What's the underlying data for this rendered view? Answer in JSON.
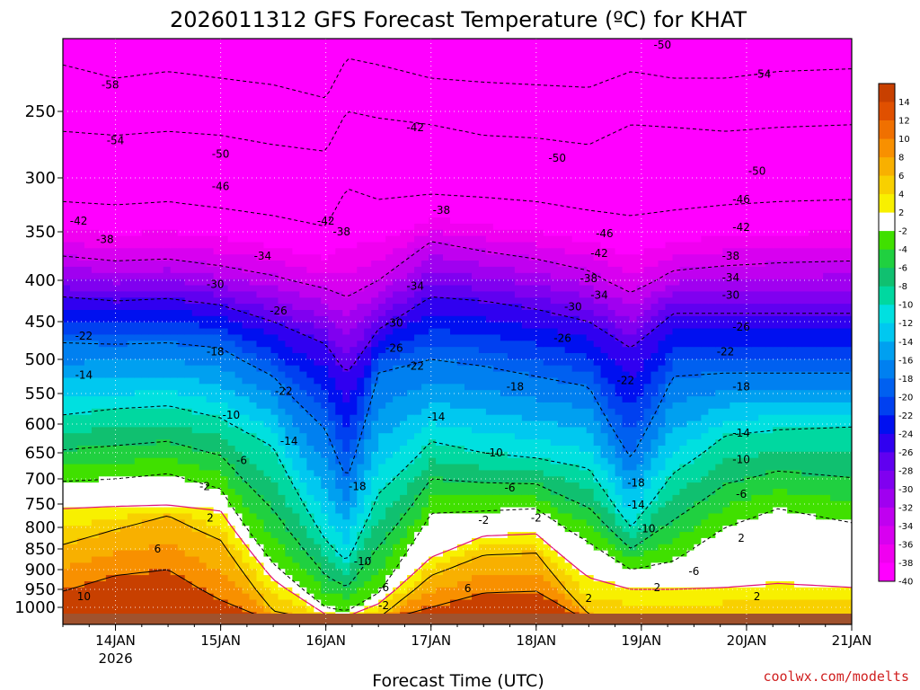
{
  "chart_data": {
    "type": "heatmap",
    "title": "2026011312 GFS Forecast Temperature (ºC) for KHAT",
    "xlabel": "Forecast Time (UTC)",
    "credit": "coolwx.com/modelts",
    "xticks": [
      "14JAN",
      "15JAN",
      "16JAN",
      "17JAN",
      "18JAN",
      "19JAN",
      "20JAN",
      "21JAN"
    ],
    "xtick_sublabel": "2026",
    "x_range_days": [
      13.5,
      21.0
    ],
    "y_axis": "pressure (hPa), inverted",
    "y_range": [
      200,
      1040
    ],
    "yticks": [
      250,
      300,
      350,
      400,
      450,
      500,
      550,
      600,
      650,
      700,
      750,
      800,
      850,
      900,
      950,
      1000
    ],
    "colorbar": {
      "levels": [
        14,
        12,
        10,
        8,
        6,
        4,
        2,
        -2,
        -4,
        -6,
        -8,
        -10,
        -12,
        -14,
        -16,
        -18,
        -20,
        -22,
        -24,
        -26,
        -28,
        -30,
        -32,
        -34,
        -36,
        -38,
        -40
      ],
      "colors": [
        "#c84000",
        "#e05000",
        "#f07000",
        "#f89000",
        "#f8b000",
        "#f8d000",
        "#f8f000",
        "#ffffff",
        "#40e000",
        "#20d040",
        "#10c070",
        "#00d8a0",
        "#00e0e0",
        "#00c8f0",
        "#00a0f0",
        "#0080f0",
        "#0060f0",
        "#0040f0",
        "#0010f0",
        "#3000f0",
        "#6000f0",
        "#8000f0",
        "#a000f0",
        "#c000f0",
        "#d800f0",
        "#f000f0",
        "#ff00ff"
      ]
    },
    "profiles": [
      {
        "day": 13.5,
        "isotherm_hpa": {
          "-58": 215,
          "-50": 265,
          "-42": 322,
          "-34": 375,
          "-26": 420,
          "-18": 478,
          "-10": 585,
          "-2": 705,
          "2": 760,
          "6": 840,
          "10": 955
        }
      },
      {
        "day": 14.0,
        "isotherm_hpa": {
          "-58": 225,
          "-50": 268,
          "-42": 325,
          "-34": 380,
          "-26": 425,
          "-18": 480,
          "-10": 575,
          "-2": 700,
          "2": 755,
          "6": 805,
          "10": 915
        }
      },
      {
        "day": 14.5,
        "isotherm_hpa": {
          "-58": 220,
          "-50": 265,
          "-42": 322,
          "-34": 378,
          "-26": 422,
          "-18": 478,
          "-10": 570,
          "-2": 690,
          "2": 752,
          "6": 775,
          "10": 900
        }
      },
      {
        "day": 15.0,
        "isotherm_hpa": {
          "-58": 225,
          "-50": 268,
          "-42": 328,
          "-34": 385,
          "-26": 430,
          "-18": 485,
          "-10": 590,
          "-2": 720,
          "2": 765,
          "6": 830,
          "10": 980
        }
      },
      {
        "day": 15.5,
        "isotherm_hpa": {
          "-58": 230,
          "-50": 275,
          "-42": 335,
          "-34": 395,
          "-26": 450,
          "-18": 525,
          "-10": 640,
          "-2": 885,
          "2": 925,
          "6": 1010,
          "10": 1040
        }
      },
      {
        "day": 16.0,
        "isotherm_hpa": {
          "-58": 240,
          "-50": 280,
          "-42": 345,
          "-34": 410,
          "-26": 480,
          "-18": 610,
          "-10": 830,
          "-2": 1000,
          "2": 1020,
          "6": 1040,
          "10": 1040
        }
      },
      {
        "day": 16.2,
        "isotherm_hpa": {
          "-58": 210,
          "-50": 250,
          "-42": 310,
          "-34": 420,
          "-26": 520,
          "-18": 700,
          "-10": 880,
          "-2": 1010,
          "2": 1025,
          "6": 1040,
          "10": 1040
        }
      },
      {
        "day": 16.5,
        "isotherm_hpa": {
          "-58": 215,
          "-50": 255,
          "-42": 320,
          "-34": 400,
          "-26": 460,
          "-18": 520,
          "-10": 730,
          "-2": 960,
          "2": 990,
          "6": 1030,
          "10": 1040
        }
      },
      {
        "day": 17.0,
        "isotherm_hpa": {
          "-58": 225,
          "-50": 260,
          "-42": 315,
          "-34": 360,
          "-26": 420,
          "-18": 500,
          "-10": 630,
          "-2": 770,
          "2": 870,
          "6": 915,
          "10": 1000
        }
      },
      {
        "day": 17.5,
        "isotherm_hpa": {
          "-58": 228,
          "-50": 268,
          "-42": 318,
          "-34": 370,
          "-26": 425,
          "-18": 510,
          "-10": 650,
          "-2": 765,
          "2": 820,
          "6": 865,
          "10": 960
        }
      },
      {
        "day": 18.0,
        "isotherm_hpa": {
          "-58": 230,
          "-50": 270,
          "-42": 322,
          "-34": 378,
          "-26": 435,
          "-18": 525,
          "-10": 660,
          "-2": 760,
          "2": 815,
          "6": 860,
          "10": 955
        }
      },
      {
        "day": 18.5,
        "isotherm_hpa": {
          "-58": 232,
          "-50": 275,
          "-42": 330,
          "-34": 390,
          "-26": 450,
          "-18": 540,
          "-10": 680,
          "-2": 835,
          "2": 920,
          "6": 1020,
          "10": 1040
        }
      },
      {
        "day": 18.9,
        "isotherm_hpa": {
          "-58": 220,
          "-50": 260,
          "-42": 335,
          "-34": 415,
          "-26": 485,
          "-18": 660,
          "-10": 800,
          "-2": 900,
          "2": 950,
          "6": 1030,
          "10": 1040
        }
      },
      {
        "day": 19.3,
        "isotherm_hpa": {
          "-58": 225,
          "-50": 262,
          "-42": 330,
          "-34": 390,
          "-26": 440,
          "-18": 525,
          "-10": 690,
          "-2": 880,
          "2": 950,
          "6": 1030,
          "10": 1040
        }
      },
      {
        "day": 19.8,
        "isotherm_hpa": {
          "-58": 225,
          "-50": 265,
          "-42": 325,
          "-34": 385,
          "-26": 440,
          "-18": 520,
          "-10": 620,
          "-2": 800,
          "2": 945,
          "6": 1030,
          "10": 1040
        }
      },
      {
        "day": 20.3,
        "isotherm_hpa": {
          "-58": 220,
          "-50": 262,
          "-42": 322,
          "-34": 382,
          "-26": 440,
          "-18": 520,
          "-10": 610,
          "-2": 760,
          "2": 935,
          "6": 1030,
          "10": 1040
        }
      },
      {
        "day": 21.0,
        "isotherm_hpa": {
          "-58": 218,
          "-50": 260,
          "-42": 320,
          "-34": 380,
          "-26": 440,
          "-18": 520,
          "-10": 605,
          "-2": 790,
          "2": 945,
          "6": 1030,
          "10": 1040
        }
      }
    ],
    "contour_labels": [
      {
        "text": "-58",
        "day": 13.95,
        "hpa": 230
      },
      {
        "text": "-54",
        "day": 14.0,
        "hpa": 272
      },
      {
        "text": "-50",
        "day": 15.0,
        "hpa": 282
      },
      {
        "text": "-46",
        "day": 15.0,
        "hpa": 308
      },
      {
        "text": "-42",
        "day": 13.65,
        "hpa": 340
      },
      {
        "text": "-38",
        "day": 13.9,
        "hpa": 358
      },
      {
        "text": "-34",
        "day": 15.4,
        "hpa": 375
      },
      {
        "text": "-30",
        "day": 14.95,
        "hpa": 405
      },
      {
        "text": "-26",
        "day": 15.55,
        "hpa": 437
      },
      {
        "text": "-22",
        "day": 13.7,
        "hpa": 469
      },
      {
        "text": "-18",
        "day": 14.95,
        "hpa": 490
      },
      {
        "text": "-14",
        "day": 13.7,
        "hpa": 523
      },
      {
        "text": "-10",
        "day": 15.1,
        "hpa": 585
      },
      {
        "text": "-6",
        "day": 13.45,
        "hpa": 662
      },
      {
        "text": "-6",
        "day": 15.2,
        "hpa": 665
      },
      {
        "text": "-2",
        "day": 14.85,
        "hpa": 715
      },
      {
        "text": "2",
        "day": 14.9,
        "hpa": 780
      },
      {
        "text": "6",
        "day": 14.4,
        "hpa": 850
      },
      {
        "text": "10",
        "day": 13.7,
        "hpa": 970
      },
      {
        "text": "-14",
        "day": 15.65,
        "hpa": 630
      },
      {
        "text": "-18",
        "day": 16.3,
        "hpa": 715
      },
      {
        "text": "-10",
        "day": 16.35,
        "hpa": 880
      },
      {
        "text": "-6",
        "day": 16.55,
        "hpa": 945
      },
      {
        "text": "-2",
        "day": 16.55,
        "hpa": 995
      },
      {
        "text": "-42",
        "day": 16.0,
        "hpa": 340
      },
      {
        "text": "-42",
        "day": 16.85,
        "hpa": 262
      },
      {
        "text": "-38",
        "day": 16.15,
        "hpa": 350
      },
      {
        "text": "-38",
        "day": 17.1,
        "hpa": 330
      },
      {
        "text": "-34",
        "day": 16.85,
        "hpa": 407
      },
      {
        "text": "-30",
        "day": 16.65,
        "hpa": 452
      },
      {
        "text": "-26",
        "day": 16.65,
        "hpa": 485
      },
      {
        "text": "-22",
        "day": 16.85,
        "hpa": 510
      },
      {
        "text": "-22",
        "day": 15.6,
        "hpa": 547
      },
      {
        "text": "-18",
        "day": 17.8,
        "hpa": 540
      },
      {
        "text": "-14",
        "day": 17.05,
        "hpa": 588
      },
      {
        "text": "-10",
        "day": 17.6,
        "hpa": 650
      },
      {
        "text": "-6",
        "day": 17.75,
        "hpa": 718
      },
      {
        "text": "-2",
        "day": 17.5,
        "hpa": 785
      },
      {
        "text": "6",
        "day": 17.35,
        "hpa": 948
      },
      {
        "text": "-50",
        "day": 18.2,
        "hpa": 285
      },
      {
        "text": "-50",
        "day": 19.2,
        "hpa": 200
      },
      {
        "text": "-54",
        "day": 20.15,
        "hpa": 222
      },
      {
        "text": "-50",
        "day": 20.1,
        "hpa": 295
      },
      {
        "text": "-46",
        "day": 18.65,
        "hpa": 352
      },
      {
        "text": "-46",
        "day": 19.95,
        "hpa": 320
      },
      {
        "text": "-42",
        "day": 18.6,
        "hpa": 372
      },
      {
        "text": "-42",
        "day": 19.95,
        "hpa": 346
      },
      {
        "text": "-38",
        "day": 18.5,
        "hpa": 398
      },
      {
        "text": "-38",
        "day": 19.85,
        "hpa": 375
      },
      {
        "text": "-34",
        "day": 18.6,
        "hpa": 418
      },
      {
        "text": "-34",
        "day": 19.85,
        "hpa": 397
      },
      {
        "text": "-30",
        "day": 18.35,
        "hpa": 432
      },
      {
        "text": "-30",
        "day": 19.85,
        "hpa": 418
      },
      {
        "text": "-26",
        "day": 18.25,
        "hpa": 472
      },
      {
        "text": "-26",
        "day": 19.95,
        "hpa": 457
      },
      {
        "text": "-22",
        "day": 18.85,
        "hpa": 531
      },
      {
        "text": "-22",
        "day": 19.8,
        "hpa": 490
      },
      {
        "text": "-18",
        "day": 18.95,
        "hpa": 708
      },
      {
        "text": "-18",
        "day": 19.95,
        "hpa": 540
      },
      {
        "text": "-14",
        "day": 18.95,
        "hpa": 752
      },
      {
        "text": "-14",
        "day": 19.95,
        "hpa": 616
      },
      {
        "text": "-10",
        "day": 19.05,
        "hpa": 803
      },
      {
        "text": "-10",
        "day": 19.95,
        "hpa": 663
      },
      {
        "text": "-6",
        "day": 19.95,
        "hpa": 730
      },
      {
        "text": "-6",
        "day": 19.5,
        "hpa": 905
      },
      {
        "text": "2",
        "day": 19.95,
        "hpa": 825
      },
      {
        "text": "2",
        "day": 19.15,
        "hpa": 945
      },
      {
        "text": "2",
        "day": 18.5,
        "hpa": 975
      },
      {
        "text": "2",
        "day": 20.1,
        "hpa": 970
      },
      {
        "text": "-2",
        "day": 18.0,
        "hpa": 780
      }
    ]
  }
}
